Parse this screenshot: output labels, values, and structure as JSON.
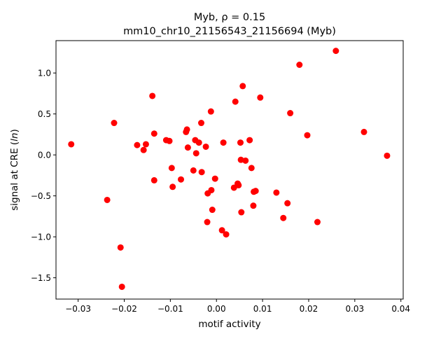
{
  "chart_data": {
    "type": "scatter",
    "title_line1_prefix": "Myb, ",
    "title_line1_rho": "ρ = 0.15",
    "title_line2": "mm10_chr10_21156543_21156694 (Myb)",
    "xlabel": "motif activity",
    "ylabel_prefix": "signal at CRE (",
    "ylabel_italic": "ln",
    "ylabel_suffix": ")",
    "xlim": [
      -0.0348,
      0.0405
    ],
    "ylim": [
      -1.76,
      1.395
    ],
    "xticks": [
      -0.03,
      -0.02,
      -0.01,
      0.0,
      0.01,
      0.02,
      0.03,
      0.04
    ],
    "xtick_labels": [
      "−0.03",
      "−0.02",
      "−0.01",
      "0.00",
      "0.01",
      "0.02",
      "0.03",
      "0.04"
    ],
    "yticks": [
      -1.5,
      -1.0,
      -0.5,
      0.0,
      0.5,
      1.0
    ],
    "ytick_labels": [
      "−1.5",
      "−1.0",
      "−0.5",
      "0.0",
      "0.5",
      "1.0"
    ],
    "grid": false,
    "marker_color": "#ff0000",
    "points": [
      [
        -0.0315,
        0.13
      ],
      [
        -0.0237,
        -0.55
      ],
      [
        -0.0222,
        0.39
      ],
      [
        -0.0208,
        -1.13
      ],
      [
        -0.0205,
        -1.61
      ],
      [
        -0.0172,
        0.12
      ],
      [
        -0.0158,
        0.06
      ],
      [
        -0.0153,
        0.13
      ],
      [
        -0.0139,
        0.72
      ],
      [
        -0.0135,
        0.26
      ],
      [
        -0.0135,
        -0.31
      ],
      [
        -0.0109,
        0.18
      ],
      [
        -0.0102,
        0.17
      ],
      [
        -0.0097,
        -0.16
      ],
      [
        -0.0095,
        -0.39
      ],
      [
        -0.0077,
        -0.3
      ],
      [
        -0.0066,
        0.28
      ],
      [
        -0.0064,
        0.31
      ],
      [
        -0.0062,
        0.09
      ],
      [
        -0.005,
        -0.19
      ],
      [
        -0.0046,
        0.18
      ],
      [
        -0.0044,
        0.02
      ],
      [
        -0.0038,
        0.15
      ],
      [
        -0.0033,
        0.39
      ],
      [
        -0.0032,
        -0.21
      ],
      [
        -0.0023,
        0.1
      ],
      [
        -0.002,
        -0.82
      ],
      [
        -0.0019,
        -0.47
      ],
      [
        -0.0012,
        0.53
      ],
      [
        -0.0011,
        -0.43
      ],
      [
        -0.0009,
        -0.67
      ],
      [
        -0.0003,
        -0.29
      ],
      [
        0.0012,
        -0.92
      ],
      [
        0.0015,
        0.15
      ],
      [
        0.0021,
        -0.97
      ],
      [
        0.0038,
        -0.4
      ],
      [
        0.0041,
        0.65
      ],
      [
        0.0046,
        -0.35
      ],
      [
        0.0048,
        -0.37
      ],
      [
        0.0052,
        0.15
      ],
      [
        0.0053,
        -0.06
      ],
      [
        0.0054,
        -0.7
      ],
      [
        0.0057,
        0.84
      ],
      [
        0.0063,
        -0.07
      ],
      [
        0.0072,
        0.18
      ],
      [
        0.0076,
        -0.16
      ],
      [
        0.008,
        -0.62
      ],
      [
        0.0081,
        -0.45
      ],
      [
        0.0085,
        -0.44
      ],
      [
        0.0095,
        0.7
      ],
      [
        0.013,
        -0.46
      ],
      [
        0.0145,
        -0.77
      ],
      [
        0.0154,
        -0.59
      ],
      [
        0.016,
        0.51
      ],
      [
        0.018,
        1.1
      ],
      [
        0.0197,
        0.24
      ],
      [
        0.0219,
        -0.82
      ],
      [
        0.0259,
        1.27
      ],
      [
        0.032,
        0.28
      ],
      [
        0.037,
        -0.01
      ]
    ]
  }
}
